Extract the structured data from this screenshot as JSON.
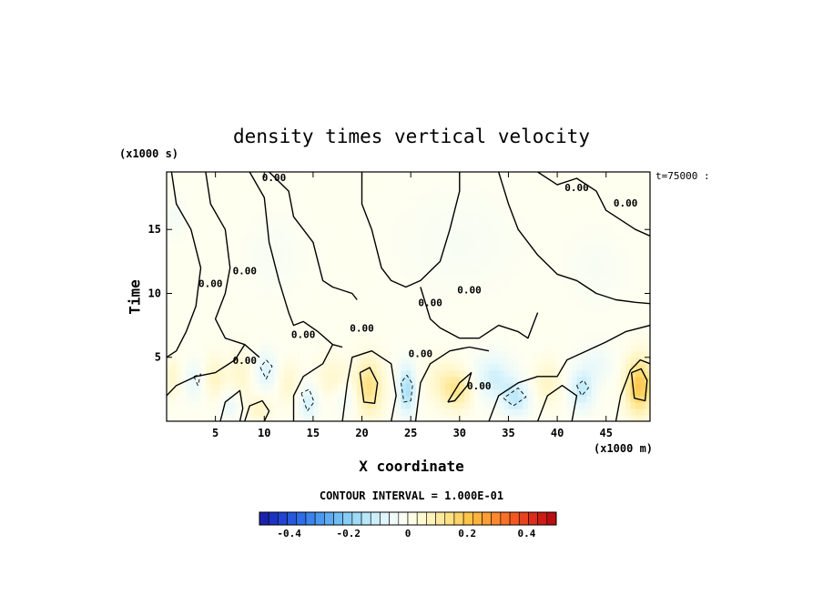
{
  "chart_data": {
    "type": "heatmap",
    "title": "density times vertical velocity",
    "xlabel": "X coordinate",
    "ylabel": "Time",
    "x_unit": "(x1000 m)",
    "y_unit": "(x1000 s)",
    "corner_label": "t=75000 :",
    "contour_interval": "CONTOUR INTERVAL = 1.000E-01",
    "xlim": [
      0,
      49.5
    ],
    "ylim": [
      0,
      19.5
    ],
    "x_ticks": [
      "5",
      "10",
      "15",
      "20",
      "25",
      "30",
      "35",
      "40",
      "45"
    ],
    "x_tick_values": [
      5,
      10,
      15,
      20,
      25,
      30,
      35,
      40,
      45
    ],
    "y_ticks": [
      "5",
      "10",
      "15"
    ],
    "y_tick_values": [
      5,
      10,
      15
    ],
    "contour_labels": [
      {
        "text": "0.00",
        "x": 11,
        "y": 18.8
      },
      {
        "text": "0.00",
        "x": 47,
        "y": 16.8
      },
      {
        "text": "0.00",
        "x": 42,
        "y": 18.0
      },
      {
        "text": "0.00",
        "x": 4.5,
        "y": 10.5
      },
      {
        "text": "0.00",
        "x": 8,
        "y": 11.5
      },
      {
        "text": "0.00",
        "x": 20,
        "y": 7.0
      },
      {
        "text": "0.00",
        "x": 27,
        "y": 9.0
      },
      {
        "text": "0.00",
        "x": 31,
        "y": 10.0
      },
      {
        "text": "0.00",
        "x": 14,
        "y": 6.5
      },
      {
        "text": "0.00",
        "x": 8,
        "y": 4.5
      },
      {
        "text": "0.00",
        "x": 26,
        "y": 5.0
      },
      {
        "text": "0.00",
        "x": 32,
        "y": 2.5
      }
    ],
    "features": [
      {
        "x": 0.6,
        "y": 3.5,
        "sx": 1.0,
        "sy": 1.5,
        "v": 0.05
      },
      {
        "x": 3.0,
        "y": 3.2,
        "sx": 1.2,
        "sy": 1.5,
        "v": -0.07
      },
      {
        "x": 4.8,
        "y": 3.4,
        "sx": 1.4,
        "sy": 1.6,
        "v": 0.07
      },
      {
        "x": 7.6,
        "y": 3.6,
        "sx": 1.2,
        "sy": 2.0,
        "v": 0.05
      },
      {
        "x": 6.5,
        "y": 1.4,
        "sx": 1.0,
        "sy": 1.2,
        "v": -0.06
      },
      {
        "x": 9.5,
        "y": 1.0,
        "sx": 1.2,
        "sy": 1.0,
        "v": 0.06
      },
      {
        "x": 10.2,
        "y": 4.0,
        "sx": 1.1,
        "sy": 1.5,
        "v": -0.09
      },
      {
        "x": 12.5,
        "y": 3.0,
        "sx": 1.2,
        "sy": 1.6,
        "v": 0.05
      },
      {
        "x": 14.5,
        "y": 1.5,
        "sx": 1.0,
        "sy": 1.4,
        "v": -0.1
      },
      {
        "x": 17.0,
        "y": 3.5,
        "sx": 1.6,
        "sy": 1.6,
        "v": 0.05
      },
      {
        "x": 18.5,
        "y": 1.8,
        "sx": 1.2,
        "sy": 1.2,
        "v": -0.05
      },
      {
        "x": 20.7,
        "y": 2.7,
        "sx": 1.4,
        "sy": 2.2,
        "v": 0.14
      },
      {
        "x": 24.6,
        "y": 2.5,
        "sx": 0.9,
        "sy": 2.0,
        "v": -0.16
      },
      {
        "x": 28.0,
        "y": 3.2,
        "sx": 1.6,
        "sy": 1.8,
        "v": 0.05
      },
      {
        "x": 29.8,
        "y": 2.5,
        "sx": 1.5,
        "sy": 1.5,
        "v": 0.12
      },
      {
        "x": 33.5,
        "y": 3.5,
        "sx": 2.0,
        "sy": 1.8,
        "v": -0.1
      },
      {
        "x": 35.8,
        "y": 1.8,
        "sx": 1.5,
        "sy": 1.4,
        "v": -0.12
      },
      {
        "x": 39.0,
        "y": 3.0,
        "sx": 1.5,
        "sy": 1.7,
        "v": 0.06
      },
      {
        "x": 42.5,
        "y": 2.5,
        "sx": 1.3,
        "sy": 1.6,
        "v": -0.12
      },
      {
        "x": 44.0,
        "y": 4.5,
        "sx": 1.8,
        "sy": 1.5,
        "v": -0.05
      },
      {
        "x": 48.4,
        "y": 2.8,
        "sx": 1.4,
        "sy": 2.2,
        "v": 0.2
      },
      {
        "x": 1.0,
        "y": 16.0,
        "sx": 1.0,
        "sy": 1.5,
        "v": -0.03
      },
      {
        "x": 11.0,
        "y": 13.0,
        "sx": 3.0,
        "sy": 3.0,
        "v": -0.02
      },
      {
        "x": 30.0,
        "y": 14.0,
        "sx": 6.0,
        "sy": 4.0,
        "v": -0.02
      },
      {
        "x": 44.0,
        "y": 12.0,
        "sx": 3.0,
        "sy": 3.0,
        "v": -0.02
      }
    ],
    "contour_lines": [
      {
        "style": "solid",
        "points": [
          [
            0.5,
            19.5
          ],
          [
            1,
            17
          ],
          [
            2.5,
            15
          ],
          [
            3.5,
            12
          ],
          [
            3,
            9
          ],
          [
            2,
            7
          ],
          [
            1,
            5.5
          ],
          [
            0,
            5
          ]
        ]
      },
      {
        "style": "solid",
        "points": [
          [
            4,
            19.5
          ],
          [
            4.5,
            17
          ],
          [
            6,
            15
          ],
          [
            6.5,
            12
          ],
          [
            6,
            10
          ],
          [
            5,
            8
          ],
          [
            6,
            6.5
          ],
          [
            8,
            6
          ],
          [
            9.5,
            5
          ]
        ]
      },
      {
        "style": "solid",
        "points": [
          [
            8.5,
            19.5
          ],
          [
            10,
            17.5
          ],
          [
            10.5,
            14
          ],
          [
            11.5,
            11
          ],
          [
            12.5,
            8.5
          ],
          [
            13,
            7.5
          ],
          [
            14,
            7.8
          ],
          [
            15.5,
            7
          ],
          [
            17,
            6
          ],
          [
            18,
            5.8
          ]
        ]
      },
      {
        "style": "solid",
        "points": [
          [
            10.5,
            19.5
          ],
          [
            12.5,
            18
          ],
          [
            13,
            16
          ],
          [
            15,
            14
          ],
          [
            16,
            11
          ],
          [
            17,
            10.5
          ],
          [
            19,
            10
          ],
          [
            19.5,
            9.5
          ]
        ]
      },
      {
        "style": "solid",
        "points": [
          [
            20,
            19.5
          ],
          [
            20,
            17
          ],
          [
            21,
            15
          ],
          [
            22,
            12
          ],
          [
            23,
            11
          ],
          [
            24.5,
            10.5
          ],
          [
            26,
            11
          ],
          [
            28,
            12.5
          ],
          [
            29,
            15
          ],
          [
            30,
            18
          ],
          [
            30,
            19.5
          ]
        ]
      },
      {
        "style": "solid",
        "points": [
          [
            26,
            10.5
          ],
          [
            27,
            8
          ],
          [
            28,
            7.3
          ],
          [
            30,
            6.5
          ],
          [
            32,
            6.5
          ],
          [
            34,
            7.5
          ],
          [
            36,
            7
          ],
          [
            37,
            6.5
          ],
          [
            38,
            8.5
          ]
        ]
      },
      {
        "style": "solid",
        "points": [
          [
            34,
            19.5
          ],
          [
            35,
            17
          ],
          [
            36,
            15
          ],
          [
            38,
            13
          ],
          [
            40,
            11.5
          ],
          [
            42,
            11
          ],
          [
            44,
            10
          ],
          [
            46,
            9.5
          ],
          [
            48,
            9.3
          ],
          [
            49.5,
            9.2
          ]
        ]
      },
      {
        "style": "solid",
        "points": [
          [
            38,
            19.5
          ],
          [
            40,
            18.5
          ],
          [
            42,
            19
          ],
          [
            44,
            18
          ],
          [
            45,
            16.5
          ],
          [
            46,
            16
          ],
          [
            48,
            15
          ],
          [
            49.5,
            14.5
          ]
        ]
      },
      {
        "style": "solid",
        "points": [
          [
            0,
            2
          ],
          [
            1,
            2.8
          ],
          [
            3,
            3.5
          ],
          [
            5,
            3.8
          ],
          [
            7,
            4.8
          ],
          [
            8,
            6
          ]
        ]
      },
      {
        "style": "solid",
        "points": [
          [
            8,
            0
          ],
          [
            8.5,
            1.2
          ],
          [
            9.8,
            1.6
          ],
          [
            10.5,
            0.8
          ],
          [
            10,
            0
          ]
        ]
      },
      {
        "style": "solid",
        "points": [
          [
            13,
            0
          ],
          [
            13,
            2
          ],
          [
            14,
            3.5
          ],
          [
            16,
            4.5
          ],
          [
            17,
            6
          ]
        ]
      },
      {
        "style": "solid",
        "points": [
          [
            18,
            0
          ],
          [
            18.5,
            3
          ],
          [
            19,
            5
          ],
          [
            21,
            5.5
          ],
          [
            23,
            4.5
          ],
          [
            23.5,
            2
          ],
          [
            23,
            0
          ]
        ]
      },
      {
        "style": "solid",
        "points": [
          [
            19.8,
            3.8
          ],
          [
            20.2,
            1.5
          ],
          [
            21.3,
            1.4
          ],
          [
            21.6,
            3.0
          ],
          [
            20.8,
            4.2
          ],
          [
            19.8,
            3.8
          ]
        ]
      },
      {
        "style": "solid",
        "points": [
          [
            25.5,
            0
          ],
          [
            26,
            3
          ],
          [
            27,
            4.5
          ],
          [
            29,
            5.5
          ],
          [
            31,
            5.8
          ],
          [
            33,
            5.5
          ]
        ]
      },
      {
        "style": "solid",
        "points": [
          [
            28.8,
            1.5
          ],
          [
            30.0,
            3.0
          ],
          [
            31.2,
            3.8
          ],
          [
            30.8,
            2.8
          ],
          [
            29.5,
            1.6
          ],
          [
            28.8,
            1.5
          ]
        ]
      },
      {
        "style": "solid",
        "points": [
          [
            33,
            0
          ],
          [
            34,
            2
          ],
          [
            36,
            3
          ],
          [
            38,
            3.5
          ],
          [
            40,
            3.5
          ],
          [
            41,
            4.8
          ],
          [
            43,
            5.5
          ],
          [
            45,
            6.2
          ],
          [
            47,
            7
          ],
          [
            49.5,
            7.5
          ]
        ]
      },
      {
        "style": "solid",
        "points": [
          [
            38,
            0
          ],
          [
            39,
            2
          ],
          [
            40.5,
            2.8
          ],
          [
            42,
            2
          ],
          [
            41.5,
            0
          ]
        ]
      },
      {
        "style": "solid",
        "points": [
          [
            46,
            0
          ],
          [
            46.5,
            2
          ],
          [
            47.5,
            4
          ],
          [
            48.5,
            4.8
          ],
          [
            49.5,
            4.5
          ]
        ]
      },
      {
        "style": "solid",
        "points": [
          [
            47.6,
            3.8
          ],
          [
            47.9,
            1.8
          ],
          [
            49.0,
            1.6
          ],
          [
            49.2,
            3.2
          ],
          [
            48.6,
            4.1
          ],
          [
            47.6,
            3.8
          ]
        ]
      },
      {
        "style": "solid",
        "points": [
          [
            5.5,
            0
          ],
          [
            6,
            1.5
          ],
          [
            7.5,
            2.4
          ],
          [
            7.8,
            1
          ],
          [
            7.5,
            0
          ]
        ]
      },
      {
        "style": "dashed",
        "points": [
          [
            2.8,
            3.5
          ],
          [
            3.2,
            2.8
          ],
          [
            3.5,
            3.7
          ],
          [
            2.8,
            3.5
          ]
        ]
      },
      {
        "style": "dashed",
        "points": [
          [
            9.6,
            4.2
          ],
          [
            10.2,
            3.3
          ],
          [
            10.8,
            4.3
          ],
          [
            10.2,
            4.8
          ],
          [
            9.6,
            4.2
          ]
        ]
      },
      {
        "style": "dashed",
        "points": [
          [
            13.8,
            2.2
          ],
          [
            14.4,
            0.8
          ],
          [
            15.1,
            1.5
          ],
          [
            14.6,
            2.5
          ],
          [
            13.8,
            2.2
          ]
        ]
      },
      {
        "style": "dashed",
        "points": [
          [
            24.0,
            3.0
          ],
          [
            24.3,
            1.5
          ],
          [
            25.0,
            1.6
          ],
          [
            25.2,
            2.9
          ],
          [
            24.6,
            3.6
          ],
          [
            24.0,
            3.0
          ]
        ]
      },
      {
        "style": "dashed",
        "points": [
          [
            34.5,
            1.8
          ],
          [
            35.5,
            1.2
          ],
          [
            36.8,
            1.9
          ],
          [
            36.0,
            2.6
          ],
          [
            34.5,
            1.8
          ]
        ]
      },
      {
        "style": "dashed",
        "points": [
          [
            42.0,
            2.8
          ],
          [
            42.5,
            2.0
          ],
          [
            43.2,
            2.6
          ],
          [
            42.7,
            3.2
          ],
          [
            42.0,
            2.8
          ]
        ]
      }
    ],
    "colorbar": {
      "min": -0.5,
      "max": 0.5,
      "tick_labels": [
        "-0.4",
        "-0.2",
        "0",
        "0.2",
        "0.4"
      ],
      "tick_values": [
        -0.4,
        -0.2,
        0,
        0.2,
        0.4
      ],
      "colors": [
        "#1a1aa0",
        "#1f3fd0",
        "#2f6fe8",
        "#4f9ff0",
        "#7fc8f5",
        "#b5e6f8",
        "#e6f8fc",
        "#fffff0",
        "#fff4c0",
        "#ffe080",
        "#ffc040",
        "#ff9030",
        "#f55a20",
        "#d82818",
        "#b00810"
      ],
      "segments": 32
    }
  }
}
